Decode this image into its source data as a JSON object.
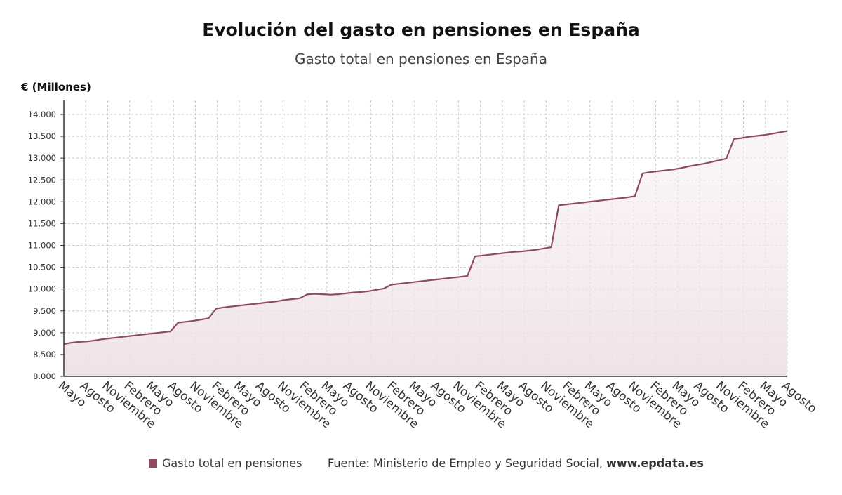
{
  "header": {
    "title": "Evolución del gasto en pensiones en España",
    "subtitle": "Gasto total en pensiones en España"
  },
  "legend": {
    "label": "Gasto total en pensiones",
    "color": "#8f4b62"
  },
  "source": {
    "text": "Fuente: Ministerio de Empleo y Seguridad Social, ",
    "site": "www.epdata.es"
  },
  "chart_data": {
    "type": "area",
    "title": "Evolución del gasto en pensiones en España",
    "subtitle": "Gasto total en pensiones en España",
    "ylabel": "€ (Millones)",
    "xlabel": "",
    "ylim": [
      8000,
      14000
    ],
    "yticks": [
      "8.000",
      "8.500",
      "9.000",
      "9.500",
      "10.000",
      "10.500",
      "11.000",
      "11.500",
      "12.000",
      "12.500",
      "13.000",
      "13.500",
      "14.000"
    ],
    "grid": true,
    "legend_position": "bottom",
    "series_color": "#8f4b62",
    "x_tick_labels": [
      "Mayo",
      "Agosto",
      "Noviembre",
      "Febrero",
      "Mayo",
      "Agosto",
      "Noviembre",
      "Febrero",
      "Mayo",
      "Agosto",
      "Noviembre",
      "Febrero",
      "Mayo",
      "Agosto",
      "Noviembre",
      "Febrero",
      "Mayo",
      "Agosto",
      "Noviembre",
      "Febrero",
      "Mayo",
      "Agosto",
      "Noviembre",
      "Febrero",
      "Mayo",
      "Agosto",
      "Noviembre",
      "Febrero",
      "Mayo",
      "Agosto",
      "Noviembre",
      "Febrero",
      "Mayo",
      "Agosto"
    ],
    "series": [
      {
        "name": "Gasto total en pensiones",
        "values": [
          8740,
          8770,
          8790,
          8800,
          8820,
          8850,
          8870,
          8890,
          8910,
          8930,
          8950,
          8970,
          8990,
          9010,
          9030,
          9230,
          9250,
          9270,
          9300,
          9330,
          9550,
          9580,
          9600,
          9620,
          9640,
          9660,
          9680,
          9700,
          9720,
          9750,
          9770,
          9790,
          9880,
          9890,
          9880,
          9870,
          9880,
          9900,
          9920,
          9930,
          9950,
          9980,
          10010,
          10100,
          10120,
          10140,
          10160,
          10180,
          10200,
          10220,
          10240,
          10260,
          10280,
          10300,
          10750,
          10770,
          10790,
          10810,
          10830,
          10850,
          10860,
          10880,
          10900,
          10930,
          10960,
          11920,
          11940,
          11960,
          11980,
          12000,
          12020,
          12040,
          12060,
          12080,
          12100,
          12130,
          12650,
          12680,
          12700,
          12720,
          12740,
          12770,
          12810,
          12840,
          12870,
          12910,
          12950,
          12990,
          13440,
          13460,
          13490,
          13510,
          13530,
          13560,
          13590,
          13620
        ]
      }
    ]
  }
}
